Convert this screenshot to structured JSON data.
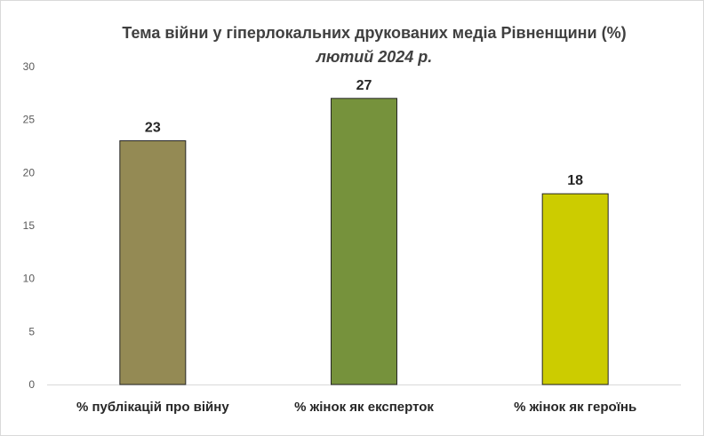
{
  "chart_data": {
    "type": "bar",
    "title": "Тема війни у гіперлокальних друкованих медіа Рівненщини (%)",
    "subtitle": "лютий 2024 р.",
    "categories": [
      "% публікацій про війну",
      "% жінок як експерток",
      "% жінок як героїнь"
    ],
    "values": [
      23,
      27,
      18
    ],
    "colors": [
      "#948a54",
      "#76923c",
      "#cccc00"
    ],
    "ylim": [
      0,
      30
    ],
    "yticks": [
      0,
      5,
      10,
      15,
      20,
      25,
      30
    ],
    "xlabel": "",
    "ylabel": "",
    "grid": false,
    "legend": "none",
    "data_labels": true
  }
}
